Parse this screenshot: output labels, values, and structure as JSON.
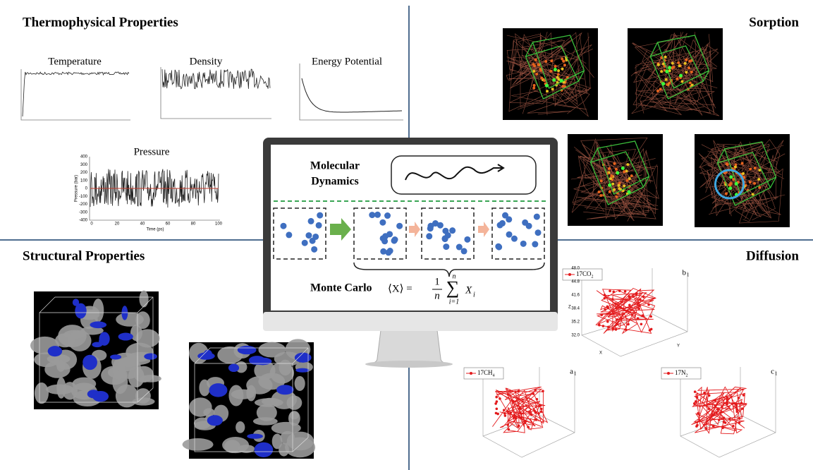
{
  "quadrants": {
    "thermophysical": "Thermophysical Properties",
    "sorption": "Sorption",
    "structural": "Structural Properties",
    "diffusion": "Diffusion"
  },
  "plots": {
    "temperature": {
      "title": "Temperature"
    },
    "density": {
      "title": "Density"
    },
    "energy": {
      "title": "Energy Potential"
    },
    "pressure": {
      "title": "Pressure",
      "yticks": [
        "400",
        "300",
        "200",
        "100",
        "0",
        "-100",
        "-200",
        "-300",
        "-400"
      ],
      "xticks": [
        "0",
        "20",
        "40",
        "60",
        "80",
        "100"
      ],
      "xlabel": "Time (ps)",
      "ylabel": "Pressure (bar)"
    }
  },
  "center": {
    "md": [
      "Molecular",
      "Dynamics"
    ],
    "mc": "Monte Carlo",
    "formula": {
      "lhs": "⟨X⟩ =",
      "num": "1",
      "den": "n",
      "sum": "∑",
      "lower": "i=1",
      "upper": "n",
      "term": "X",
      "sub": "i"
    }
  },
  "diffusion": {
    "b": {
      "legend": "17CO",
      "legend_sub": "2",
      "panel": "b",
      "panel_sub": "1",
      "zticks": [
        "48.0",
        "44.8",
        "41.6",
        "38.4",
        "35.2",
        "32.0"
      ],
      "xlabel": "X",
      "ylabel": "Y",
      "zlabel": "Z"
    },
    "a": {
      "legend": "17CH",
      "legend_sub": "4",
      "panel": "a",
      "panel_sub": "1"
    },
    "c": {
      "legend": "17N",
      "legend_sub": "2",
      "panel": "c",
      "panel_sub": "1"
    }
  }
}
